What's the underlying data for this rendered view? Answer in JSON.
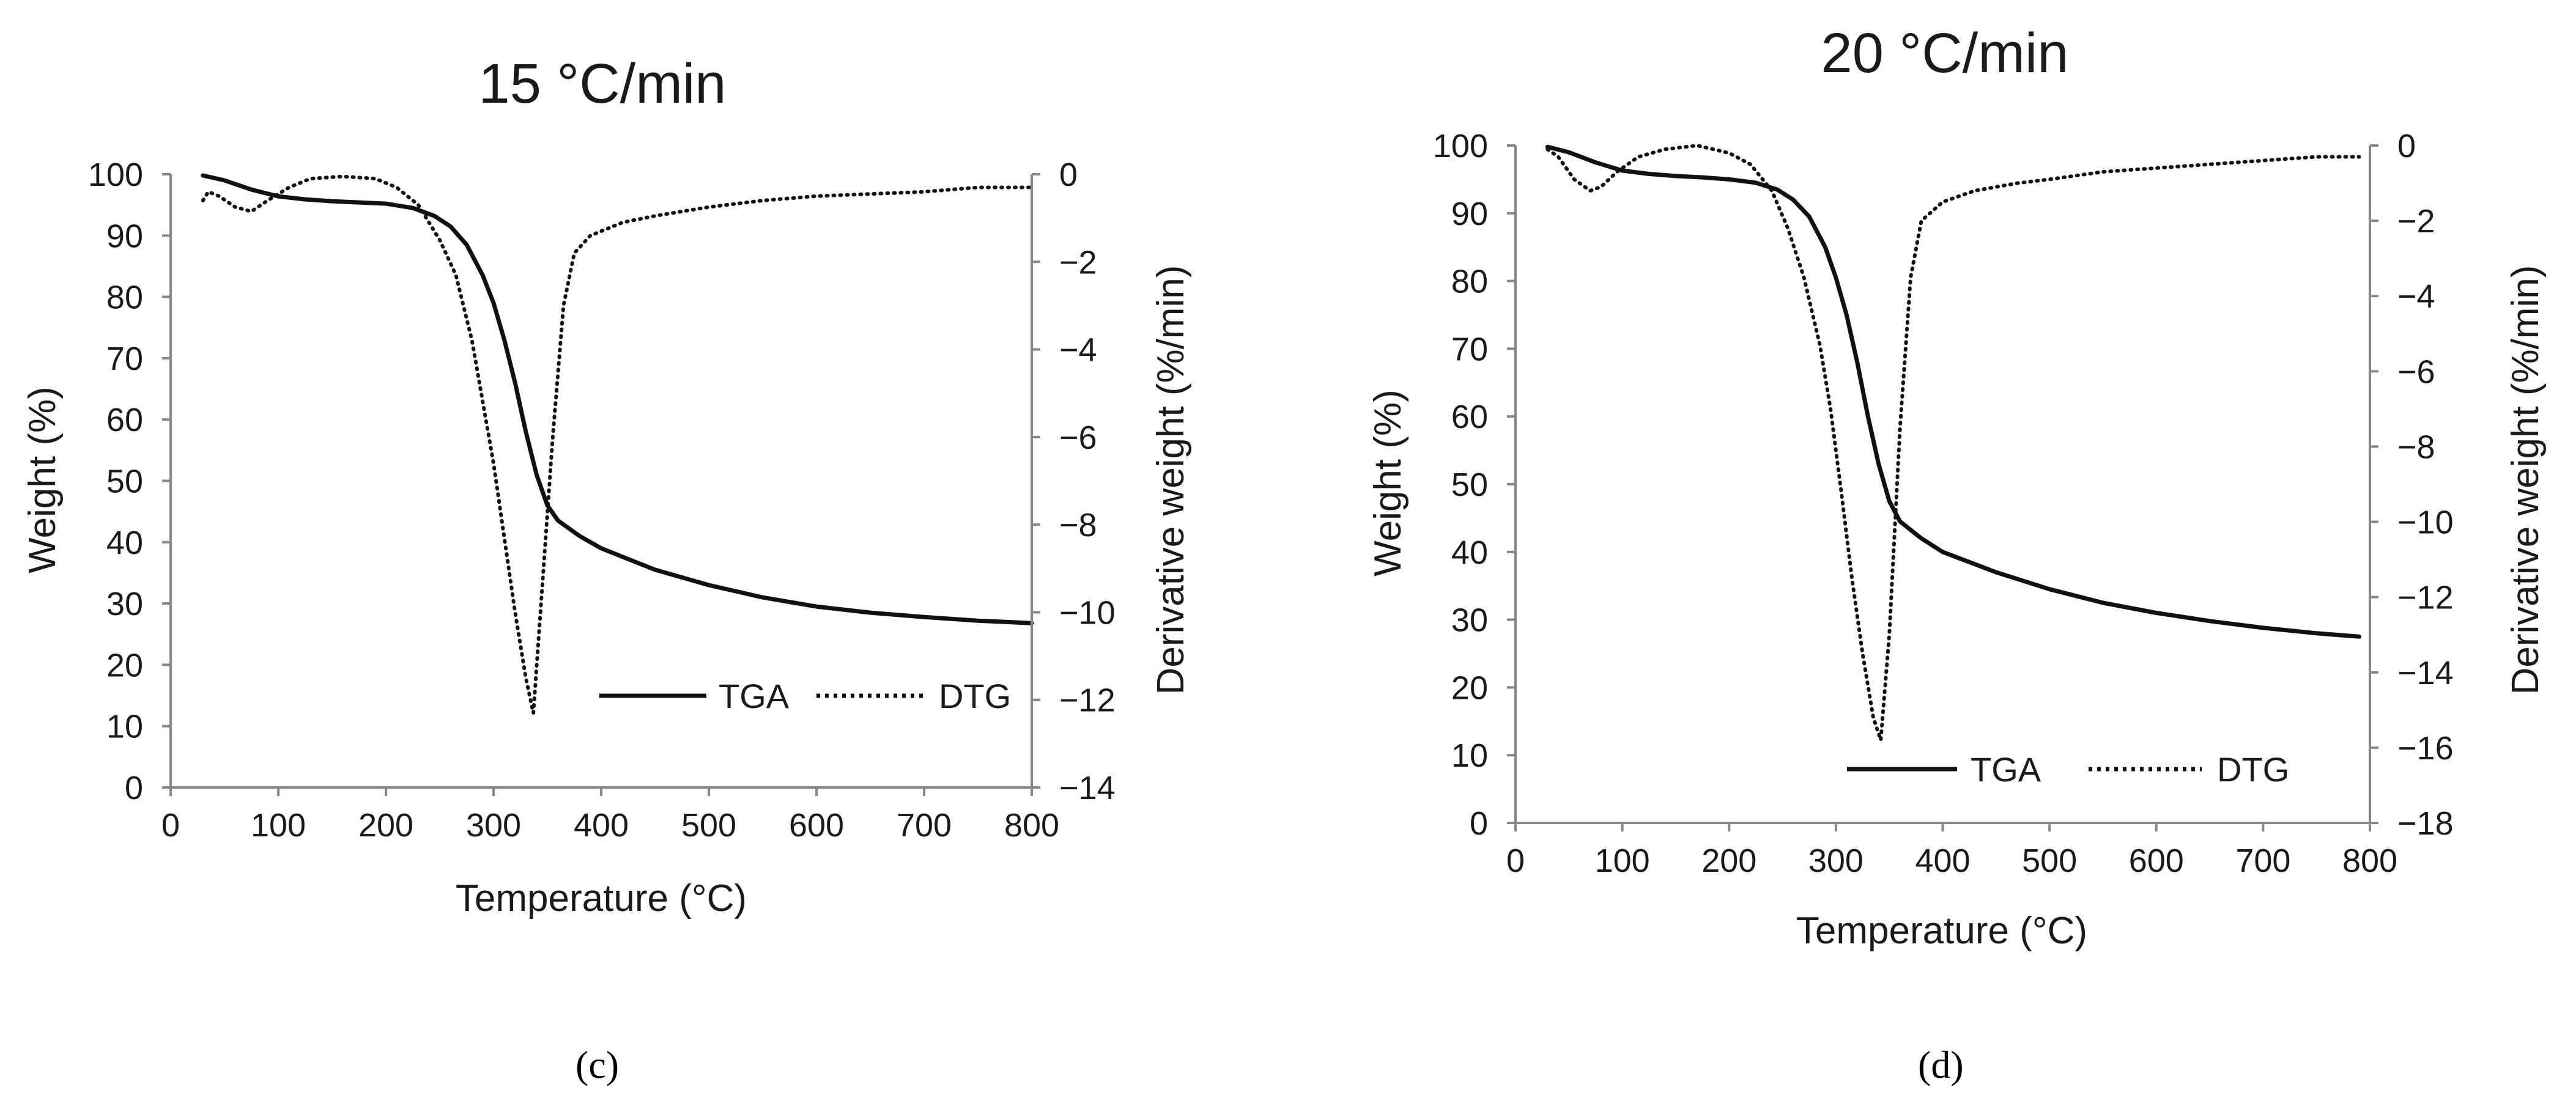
{
  "chart_data": [
    {
      "type": "line",
      "panel": "(c)",
      "title": "15 °C/min",
      "xlabel": "Temperature (°C)",
      "ylabel_left": "Weight (%)",
      "ylabel_right": "Derivative weight (%/min)",
      "xlim": [
        0,
        800
      ],
      "ylim_left": [
        0,
        100
      ],
      "ylim_right": [
        -14,
        0
      ],
      "x_ticks": [
        "0",
        "100",
        "200",
        "300",
        "400",
        "500",
        "600",
        "700",
        "800"
      ],
      "y_left_ticks": [
        "0",
        "10",
        "20",
        "30",
        "40",
        "50",
        "60",
        "70",
        "80",
        "90",
        "100"
      ],
      "y_right_ticks": [
        "0",
        "−2",
        "−4",
        "−6",
        "−8",
        "−10",
        "−12",
        "−14"
      ],
      "grid": false,
      "legend_position": "bottom-right",
      "series": [
        {
          "name": "TGA",
          "axis": "left",
          "style": "solid",
          "x": [
            30,
            50,
            75,
            100,
            125,
            150,
            175,
            200,
            225,
            245,
            260,
            275,
            290,
            300,
            310,
            320,
            330,
            340,
            350,
            360,
            380,
            400,
            450,
            500,
            550,
            600,
            650,
            700,
            750,
            800
          ],
          "values": [
            99.8,
            99.0,
            97.5,
            96.4,
            95.9,
            95.6,
            95.4,
            95.2,
            94.5,
            93.2,
            91.5,
            88.5,
            83.5,
            79.0,
            73.0,
            66.0,
            58.0,
            51.0,
            46.0,
            43.5,
            41.0,
            39.0,
            35.5,
            33.0,
            31.0,
            29.5,
            28.5,
            27.8,
            27.2,
            26.8
          ]
        },
        {
          "name": "DTG",
          "axis": "right",
          "style": "dotted",
          "x": [
            30,
            35,
            45,
            60,
            75,
            90,
            110,
            130,
            160,
            190,
            210,
            230,
            250,
            265,
            280,
            290,
            300,
            310,
            320,
            330,
            337,
            345,
            355,
            365,
            375,
            390,
            420,
            450,
            500,
            550,
            600,
            650,
            700,
            750,
            800
          ],
          "values": [
            -0.6,
            -0.4,
            -0.5,
            -0.75,
            -0.85,
            -0.6,
            -0.3,
            -0.1,
            -0.05,
            -0.1,
            -0.3,
            -0.7,
            -1.5,
            -2.3,
            -3.8,
            -5.2,
            -6.6,
            -8.3,
            -10.0,
            -11.5,
            -12.3,
            -9.5,
            -6.0,
            -3.0,
            -1.8,
            -1.4,
            -1.1,
            -0.95,
            -0.75,
            -0.6,
            -0.5,
            -0.45,
            -0.4,
            -0.3,
            -0.3
          ]
        }
      ]
    },
    {
      "type": "line",
      "panel": "(d)",
      "title": "20 °C/min",
      "xlabel": "Temperature (°C)",
      "ylabel_left": "Weight (%)",
      "ylabel_right": "Derivative weight (%/min)",
      "xlim": [
        0,
        800
      ],
      "ylim_left": [
        0,
        100
      ],
      "ylim_right": [
        -18,
        0
      ],
      "x_ticks": [
        "0",
        "100",
        "200",
        "300",
        "400",
        "500",
        "600",
        "700",
        "800"
      ],
      "y_left_ticks": [
        "0",
        "10",
        "20",
        "30",
        "40",
        "50",
        "60",
        "70",
        "80",
        "90",
        "100"
      ],
      "y_right_ticks": [
        "0",
        "−2",
        "−4",
        "−6",
        "−8",
        "−10",
        "−12",
        "−14",
        "−16",
        "−18"
      ],
      "grid": false,
      "legend_position": "bottom-right",
      "series": [
        {
          "name": "TGA",
          "axis": "left",
          "style": "solid",
          "x": [
            30,
            50,
            75,
            100,
            125,
            150,
            175,
            200,
            225,
            245,
            260,
            275,
            290,
            300,
            310,
            320,
            330,
            340,
            350,
            360,
            380,
            400,
            450,
            500,
            550,
            600,
            650,
            700,
            750,
            790
          ],
          "values": [
            99.8,
            99.0,
            97.5,
            96.3,
            95.8,
            95.5,
            95.3,
            95.0,
            94.5,
            93.5,
            92.0,
            89.5,
            85.0,
            80.5,
            75.0,
            68.0,
            60.0,
            53.0,
            47.5,
            44.5,
            42.0,
            40.0,
            37.0,
            34.5,
            32.5,
            31.0,
            29.8,
            28.8,
            28.0,
            27.5
          ]
        },
        {
          "name": "DTG",
          "axis": "right",
          "style": "dotted",
          "x": [
            30,
            40,
            55,
            70,
            80,
            95,
            115,
            140,
            170,
            200,
            220,
            240,
            255,
            270,
            285,
            295,
            305,
            315,
            325,
            335,
            342,
            350,
            360,
            370,
            380,
            400,
            430,
            470,
            500,
            550,
            600,
            650,
            700,
            750,
            790
          ],
          "values": [
            -0.1,
            -0.3,
            -0.9,
            -1.2,
            -1.1,
            -0.7,
            -0.3,
            -0.1,
            0.0,
            -0.2,
            -0.5,
            -1.2,
            -2.2,
            -3.5,
            -5.3,
            -7.0,
            -9.2,
            -11.5,
            -13.5,
            -15.2,
            -15.8,
            -13.0,
            -7.5,
            -3.5,
            -2.0,
            -1.5,
            -1.2,
            -1.0,
            -0.9,
            -0.7,
            -0.6,
            -0.5,
            -0.4,
            -0.3,
            -0.3
          ]
        }
      ]
    }
  ]
}
